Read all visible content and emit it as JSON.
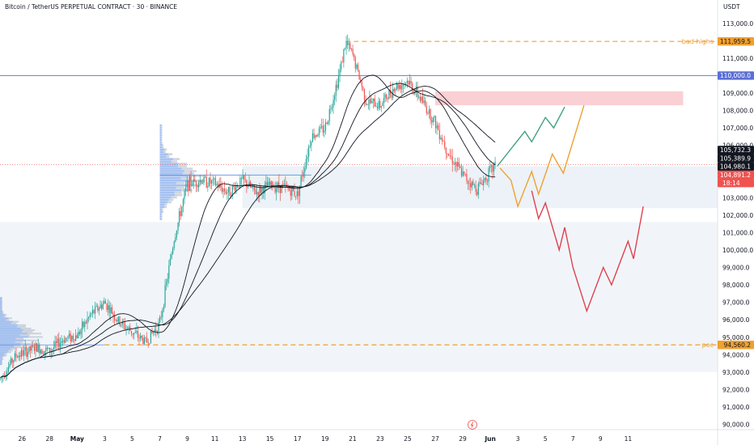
{
  "header": {
    "title": "Bitcoin / TetherUS PERPETUAL CONTRACT · 30 · BINANCE",
    "currency": "USDT"
  },
  "colors": {
    "up": "#26a69a",
    "down": "#ef5350",
    "ma": "#131722",
    "projection_green": "#3f9f7f",
    "projection_orange": "#f0a030",
    "projection_red": "#e0414e",
    "zone_red": "#f7b7bd",
    "zone_blue": "#dde8f0",
    "line_blue": "#5b6fd6",
    "poc": "#f0a030"
  },
  "chart_data": {
    "type": "candlestick",
    "y_axis": {
      "ticks": [
        "113,000.0",
        "111,000.0",
        "110,000.0",
        "109,000.0",
        "108,000.0",
        "107,000.0",
        "106,000.0",
        "105,000.0",
        "104,000.0",
        "103,000.0",
        "102,000.0",
        "101,000.0",
        "100,000.0",
        "99,000.0",
        "98,000.0",
        "97,000.0",
        "96,000.0",
        "95,000.0",
        "94,000.0",
        "93,000.0",
        "92,000.0",
        "91,000.0",
        "90,000.0"
      ],
      "range": [
        89700,
        113500
      ]
    },
    "x_axis": {
      "ticks": [
        "26",
        "28",
        "May",
        "3",
        "5",
        "7",
        "9",
        "11",
        "13",
        "15",
        "17",
        "19",
        "21",
        "23",
        "25",
        "27",
        "29",
        "Jun",
        "3",
        "5",
        "7",
        "9",
        "11"
      ],
      "tick_values": [
        -1,
        1,
        3,
        5,
        7,
        9,
        11,
        13,
        15,
        17,
        19,
        21,
        23,
        25,
        27,
        29,
        31,
        33,
        35,
        37,
        39,
        41,
        43
      ],
      "range": [
        -2.6,
        49.5
      ]
    },
    "price_path": [
      [
        -2.6,
        92600
      ],
      [
        -1.5,
        93900
      ],
      [
        0,
        94400
      ],
      [
        1,
        94200
      ],
      [
        2,
        94900
      ],
      [
        3,
        95100
      ],
      [
        4,
        96300
      ],
      [
        5,
        97000
      ],
      [
        6,
        95900
      ],
      [
        7,
        95300
      ],
      [
        8,
        94700
      ],
      [
        9,
        95800
      ],
      [
        10,
        100500
      ],
      [
        11,
        103800
      ],
      [
        12,
        104000
      ],
      [
        13,
        103800
      ],
      [
        14,
        103300
      ],
      [
        15,
        104000
      ],
      [
        16,
        103300
      ],
      [
        17,
        103700
      ],
      [
        18,
        103600
      ],
      [
        19,
        103200
      ],
      [
        20,
        106500
      ],
      [
        21,
        107000
      ],
      [
        22,
        110000
      ],
      [
        22.5,
        111900
      ],
      [
        23,
        111200
      ],
      [
        24,
        108500
      ],
      [
        25,
        108300
      ],
      [
        26,
        109300
      ],
      [
        27,
        109700
      ],
      [
        28,
        108600
      ],
      [
        29,
        107300
      ],
      [
        30,
        105500
      ],
      [
        31,
        104300
      ],
      [
        32,
        103500
      ],
      [
        33,
        104500
      ],
      [
        33.4,
        104900
      ]
    ],
    "price_axis_labels": [
      {
        "value": 111959.5,
        "text": "111,959.5",
        "color": "#f0a030",
        "text_color": "#131722"
      },
      {
        "value": 110000.0,
        "text": "110,000.0",
        "color": "#5b6fd6",
        "text_color": "#ffffff"
      },
      {
        "value": 105732.3,
        "text": "105,732.3",
        "color": "#131722",
        "text_color": "#ffffff"
      },
      {
        "value": 105389.9,
        "text": "105,389.9",
        "color": "#131722",
        "text_color": "#ffffff"
      },
      {
        "value": 104980.1,
        "text": "104,980.1",
        "color": "#131722",
        "text_color": "#ffffff"
      },
      {
        "value": 104891.2,
        "text": "104,891.2",
        "color": "#ef5350",
        "text_color": "#ffffff"
      },
      {
        "value": 94560.2,
        "text": "94,560.2",
        "color": "#f0a030",
        "text_color": "#131722"
      }
    ],
    "countdown": "18:14",
    "levels": {
      "bad_highs": {
        "value": 111959.5,
        "label": "bad highs"
      },
      "round": {
        "value": 110000
      },
      "last": {
        "value": 104891.2
      },
      "poc": {
        "value": 94560.2,
        "label": "poc"
      }
    },
    "zones": [
      {
        "name": "supply",
        "y_from": 108300,
        "y_to": 109100,
        "x_from": 29,
        "x_to": 47
      },
      {
        "name": "range-upper",
        "y_from": 102400,
        "y_to": 104800,
        "x_from": 15,
        "x_to": 49.5
      },
      {
        "name": "range-lower",
        "y_from": 93000,
        "y_to": 101600,
        "x_from": -2.6,
        "x_to": 49.5
      }
    ],
    "projections": [
      {
        "name": "green",
        "points": [
          [
            33.5,
            104800
          ],
          [
            34.5,
            105800
          ],
          [
            35.5,
            106800
          ],
          [
            36.0,
            106200
          ],
          [
            37.0,
            107600
          ],
          [
            37.6,
            107000
          ],
          [
            38.4,
            108200
          ]
        ]
      },
      {
        "name": "orange",
        "points": [
          [
            33.7,
            104700
          ],
          [
            34.5,
            104000
          ],
          [
            35.0,
            102500
          ],
          [
            36.0,
            104500
          ],
          [
            36.5,
            103200
          ],
          [
            37.5,
            105500
          ],
          [
            38.3,
            104400
          ],
          [
            39.8,
            108300
          ]
        ]
      },
      {
        "name": "red",
        "points": [
          [
            36.0,
            103400
          ],
          [
            36.5,
            101800
          ],
          [
            37.0,
            102700
          ],
          [
            38.0,
            100000
          ],
          [
            38.4,
            101300
          ],
          [
            39.0,
            99000
          ],
          [
            40.0,
            96500
          ],
          [
            41.2,
            99000
          ],
          [
            41.8,
            98000
          ],
          [
            43.0,
            100500
          ],
          [
            43.4,
            99500
          ],
          [
            44.1,
            102500
          ]
        ]
      }
    ]
  }
}
